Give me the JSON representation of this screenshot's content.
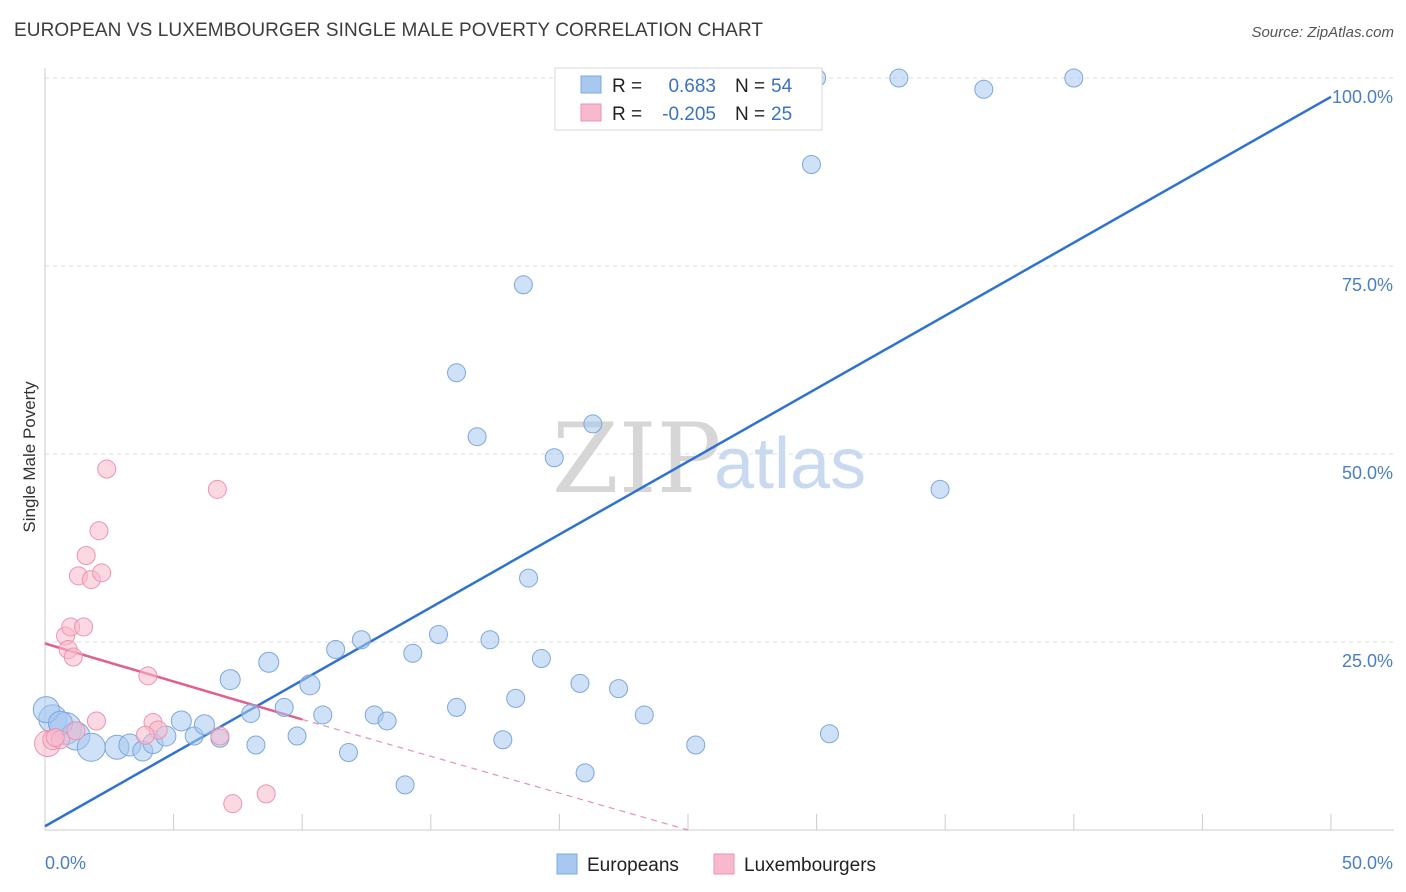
{
  "chart_data": {
    "type": "scatter",
    "title": "EUROPEAN VS LUXEMBOURGER SINGLE MALE POVERTY CORRELATION CHART",
    "source": "Source: ZipAtlas.com",
    "xlabel": "",
    "ylabel": "Single Male Poverty",
    "xlim": [
      0,
      50
    ],
    "ylim": [
      0,
      100
    ],
    "x_tick_labels": [
      "0.0%",
      "50.0%"
    ],
    "y_tick_labels": [
      "25.0%",
      "50.0%",
      "75.0%",
      "100.0%"
    ],
    "y_tick_values": [
      25,
      50,
      75,
      100
    ],
    "watermark": [
      "ZIP",
      "atlas"
    ],
    "legend_stats": [
      {
        "r_label": "R =",
        "r_value": "0.683",
        "n_label": "N =",
        "n_value": "54"
      },
      {
        "r_label": "R =",
        "r_value": "-0.205",
        "n_label": "N =",
        "n_value": "25"
      }
    ],
    "series": [
      {
        "name": "Europeans",
        "color": "#a8c8f0",
        "stroke": "#7da7dc",
        "line_color": "#2f72d0",
        "trend": {
          "x0": 0,
          "y0": 0.5,
          "x1": 50,
          "y1": 97.5,
          "dashed_to": null
        },
        "points": [
          [
            0.3,
            14.8,
            14
          ],
          [
            0.8,
            13.5,
            16
          ],
          [
            1.2,
            12.5,
            14
          ],
          [
            1.8,
            11.0,
            14
          ],
          [
            2.8,
            11.0,
            12
          ],
          [
            3.3,
            11.3,
            11
          ],
          [
            3.8,
            10.5,
            10
          ],
          [
            4.2,
            11.5,
            10
          ],
          [
            4.7,
            12.5,
            10
          ],
          [
            5.3,
            14.5,
            10
          ],
          [
            5.8,
            12.5,
            9
          ],
          [
            6.2,
            14.0,
            10
          ],
          [
            6.8,
            12.2,
            9
          ],
          [
            7.2,
            20.0,
            10
          ],
          [
            8.0,
            15.5,
            9
          ],
          [
            8.2,
            11.3,
            9
          ],
          [
            8.7,
            22.3,
            10
          ],
          [
            9.3,
            16.3,
            9
          ],
          [
            9.8,
            12.5,
            9
          ],
          [
            10.3,
            19.3,
            10
          ],
          [
            10.8,
            15.3,
            9
          ],
          [
            11.3,
            24.0,
            9
          ],
          [
            11.8,
            10.3,
            9
          ],
          [
            12.3,
            25.3,
            9
          ],
          [
            12.8,
            15.3,
            9
          ],
          [
            13.3,
            14.5,
            9
          ],
          [
            14.0,
            6.0,
            9
          ],
          [
            14.3,
            23.5,
            9
          ],
          [
            15.3,
            26.0,
            9
          ],
          [
            16.0,
            60.8,
            9
          ],
          [
            16.0,
            16.3,
            9
          ],
          [
            16.8,
            52.3,
            9
          ],
          [
            17.3,
            25.3,
            9
          ],
          [
            17.8,
            12.0,
            9
          ],
          [
            18.3,
            17.5,
            9
          ],
          [
            18.6,
            72.5,
            9
          ],
          [
            18.8,
            33.5,
            9
          ],
          [
            19.3,
            22.8,
            9
          ],
          [
            19.8,
            49.5,
            9
          ],
          [
            20.8,
            19.5,
            9
          ],
          [
            21.0,
            7.6,
            9
          ],
          [
            21.3,
            54.0,
            9
          ],
          [
            22.3,
            18.8,
            9
          ],
          [
            23.3,
            15.3,
            9
          ],
          [
            25.3,
            11.3,
            9
          ],
          [
            29.8,
            88.5,
            9
          ],
          [
            30.0,
            100.0,
            9
          ],
          [
            30.5,
            12.8,
            9
          ],
          [
            33.2,
            100.0,
            9
          ],
          [
            34.8,
            45.3,
            9
          ],
          [
            36.5,
            98.5,
            9
          ],
          [
            40.0,
            100.0,
            9
          ],
          [
            0.05,
            16.0,
            13
          ],
          [
            0.6,
            14.2,
            12
          ]
        ]
      },
      {
        "name": "Luxembourgers",
        "color": "#f7b9cc",
        "stroke": "#ee92b0",
        "line_color": "#e0628c",
        "trend": {
          "x0": 0,
          "y0": 24.8,
          "x1": 10,
          "y1": 14.7,
          "dashed_to": {
            "x": 25,
            "y": 0
          }
        },
        "points": [
          [
            0.1,
            11.5,
            13
          ],
          [
            0.3,
            12.0,
            10
          ],
          [
            0.6,
            12.0,
            9
          ],
          [
            0.8,
            25.8,
            9
          ],
          [
            0.9,
            24.0,
            9
          ],
          [
            1.0,
            27.0,
            9
          ],
          [
            1.1,
            23.0,
            9
          ],
          [
            1.3,
            33.8,
            9
          ],
          [
            1.5,
            27.0,
            9
          ],
          [
            1.6,
            36.5,
            9
          ],
          [
            1.8,
            33.3,
            9
          ],
          [
            2.0,
            14.5,
            9
          ],
          [
            2.1,
            39.8,
            9
          ],
          [
            2.2,
            34.2,
            9
          ],
          [
            2.4,
            48.0,
            9
          ],
          [
            4.0,
            20.5,
            9
          ],
          [
            4.2,
            14.3,
            9
          ],
          [
            4.4,
            13.3,
            9
          ],
          [
            6.7,
            45.3,
            9
          ],
          [
            6.8,
            12.5,
            9
          ],
          [
            7.3,
            3.5,
            9
          ],
          [
            8.6,
            4.8,
            9
          ],
          [
            0.4,
            12.3,
            9
          ],
          [
            1.2,
            13.2,
            9
          ],
          [
            3.9,
            12.6,
            9
          ]
        ]
      }
    ]
  }
}
